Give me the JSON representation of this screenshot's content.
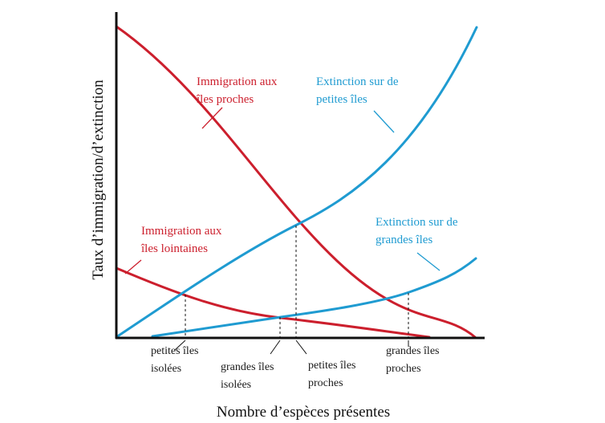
{
  "figure": {
    "xlabel": "Nombre d’espèces présentes",
    "ylabel": "Taux d’immigration/d’extinction"
  },
  "colors": {
    "immigration": "#cc1f2d",
    "extinction": "#1f9bd1",
    "axis": "#111111",
    "guide": "#111111"
  },
  "curves": [
    {
      "id": "immigration-near",
      "kind": "immigration",
      "label_lines": [
        "Immigration aux",
        "îles proches"
      ]
    },
    {
      "id": "immigration-far",
      "kind": "immigration",
      "label_lines": [
        "Immigration aux",
        "îles lointaines"
      ]
    },
    {
      "id": "extinction-small",
      "kind": "extinction",
      "label_lines": [
        "Extinction sur de",
        "petites îles"
      ]
    },
    {
      "id": "extinction-large",
      "kind": "extinction",
      "label_lines": [
        "Extinction sur de",
        "grandes îles"
      ]
    }
  ],
  "equilibria": [
    {
      "id": "small-isolated",
      "label_lines": [
        "petites îles",
        "isolées"
      ]
    },
    {
      "id": "large-isolated",
      "label_lines": [
        "grandes îles",
        "isolées"
      ]
    },
    {
      "id": "small-near",
      "label_lines": [
        "petites îles",
        "proches"
      ]
    },
    {
      "id": "large-near",
      "label_lines": [
        "grandes îles",
        "proches"
      ]
    }
  ]
}
